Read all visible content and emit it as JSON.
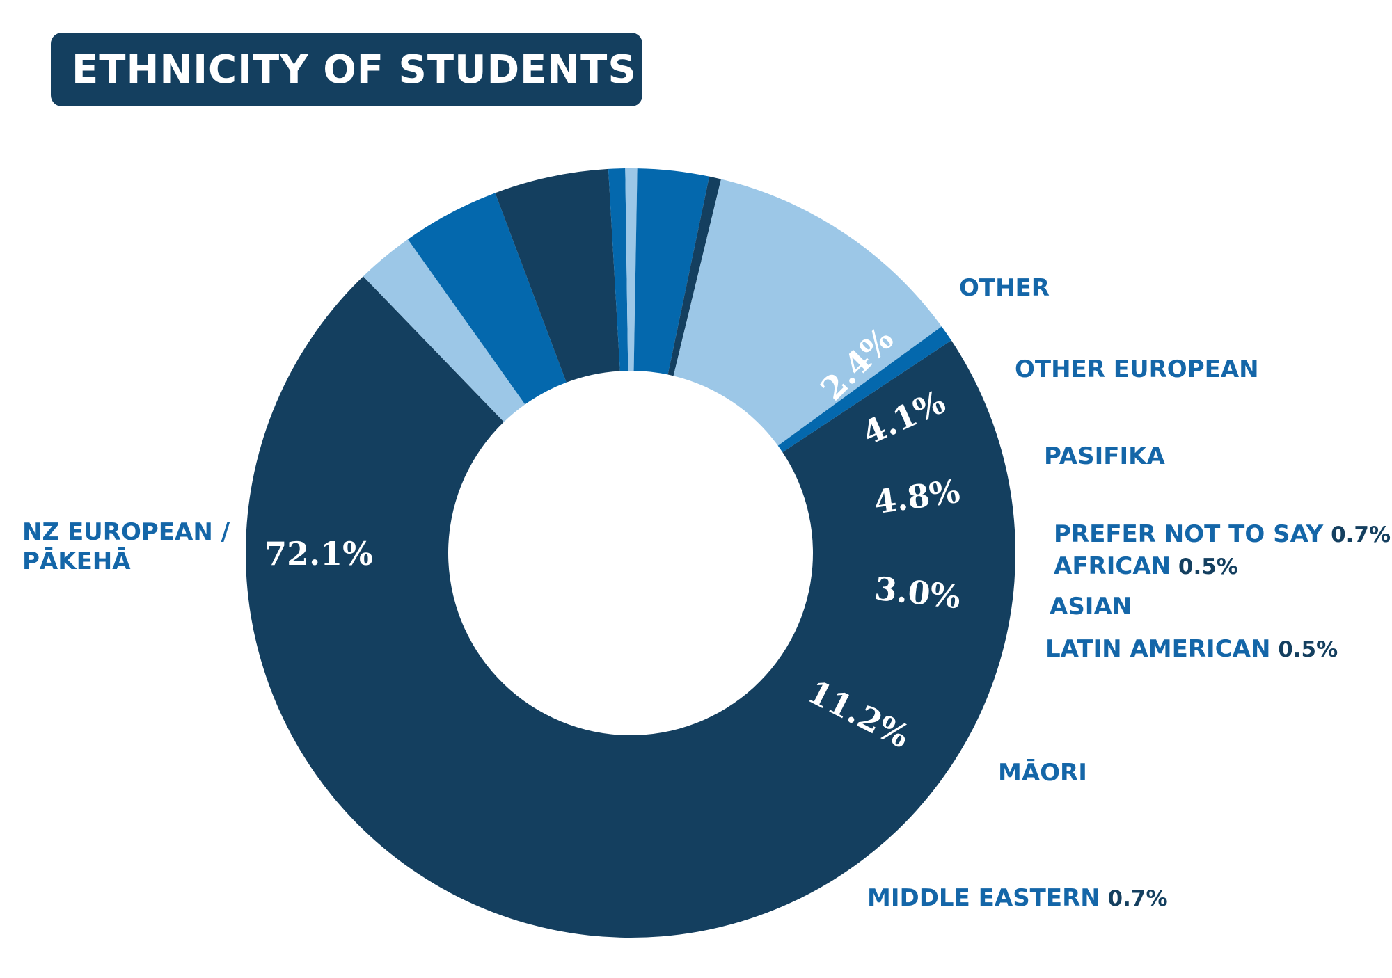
{
  "title": "ETHNICITY OF STUDENTS",
  "colors": {
    "dark": "#143f5f",
    "mid": "#0468ad",
    "light": "#9cc7e7",
    "label": "#1466a8",
    "title_bg": "#143f5f"
  },
  "chart_data": {
    "type": "pie",
    "variant": "donut",
    "title": "ETHNICITY OF STUDENTS",
    "unit": "%",
    "slices": [
      {
        "name": "NZ EUROPEAN / PĀKEHĀ",
        "value": 72.1,
        "value_label": "72.1%",
        "color": "#143f5f"
      },
      {
        "name": "OTHER",
        "value": 2.4,
        "value_label": "2.4%",
        "color": "#9cc7e7"
      },
      {
        "name": "OTHER EUROPEAN",
        "value": 4.1,
        "value_label": "4.1%",
        "color": "#0468ad"
      },
      {
        "name": "PASIFIKA",
        "value": 4.8,
        "value_label": "4.8%",
        "color": "#143f5f"
      },
      {
        "name": "PREFER NOT TO SAY",
        "value": 0.7,
        "value_label": "0.7%",
        "color": "#0468ad"
      },
      {
        "name": "AFRICAN",
        "value": 0.5,
        "value_label": "0.5%",
        "color": "#9cc7e7"
      },
      {
        "name": "ASIAN",
        "value": 3.0,
        "value_label": "3.0%",
        "color": "#0468ad"
      },
      {
        "name": "LATIN AMERICAN",
        "value": 0.5,
        "value_label": "0.5%",
        "color": "#143f5f"
      },
      {
        "name": "MĀORI",
        "value": 11.2,
        "value_label": "11.2%",
        "color": "#9cc7e7"
      },
      {
        "name": "MIDDLE EASTERN",
        "value": 0.7,
        "value_label": "0.7%",
        "color": "#0468ad"
      }
    ]
  }
}
